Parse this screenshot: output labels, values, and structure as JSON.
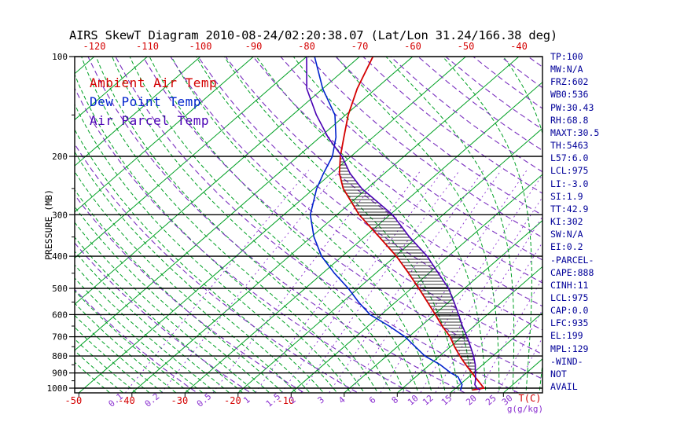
{
  "colors": {
    "temperature_axis": "#d40000",
    "mixing_ratio_axis": "#8a2fd0",
    "pressure_axis": "#000000",
    "stats_text": "#000099",
    "isotherm_green": "#00a024",
    "adiabat_purple": "#7a2fbf",
    "hatch": "#000000"
  },
  "legend": [
    {
      "label": "Ambient Air Temp",
      "color": "#d40000"
    },
    {
      "label": "Dew Point Temp",
      "color": "#0022cc"
    },
    {
      "label": "Air Parcel Temp",
      "color": "#4a00b4"
    }
  ],
  "stats_panel": {
    "lines": [
      "TP:100",
      "MW:N/A",
      "FRZ:602",
      "WB0:536",
      "PW:30.43",
      "RH:68.8",
      "MAXT:30.5",
      "TH:5463",
      "L57:6.0",
      "LCL:975",
      "LI:-3.0",
      "SI:1.9",
      "TT:42.9",
      "KI:302",
      "SW:N/A",
      "EI:0.2",
      "-PARCEL-",
      "CAPE:888",
      "CINH:11",
      "LCL:975",
      "CAP:0.0",
      "LFC:935",
      "EL:199",
      "MPL:129",
      "-WIND-",
      "NOT",
      "AVAIL"
    ]
  },
  "chart_data": {
    "type": "line",
    "diagram": "skew-t-log-p",
    "title": "AIRS SkewT Diagram 2010-08-24/02:20:38.07 (Lat/Lon 31.24/166.38 deg)",
    "pressure_axis": {
      "label": "PRESSURE (MB)",
      "scale": "log",
      "range_mb": [
        100,
        1050
      ],
      "ticks": [
        100,
        200,
        300,
        400,
        500,
        600,
        700,
        800,
        900,
        1000
      ],
      "minor_ticks": [
        150,
        250,
        350,
        450,
        550,
        650,
        750,
        850,
        950
      ]
    },
    "temp_axis": {
      "unit_label": "T(C)",
      "top_ticks": [
        -120,
        -110,
        -100,
        -90,
        -80,
        -70,
        -60,
        -50,
        -40
      ],
      "bottom_ticks": [
        -50,
        -40,
        -30,
        -20,
        -10
      ]
    },
    "mixing_ratio_axis": {
      "unit_label": "g(g/kg)",
      "ticks": [
        0.1,
        0.2,
        0.5,
        1,
        1.5,
        2,
        3,
        4,
        6,
        8,
        10,
        12,
        15,
        20,
        25,
        30
      ]
    },
    "background": {
      "isotherms": {
        "color": "#00a024",
        "range_c": [
          -120,
          40
        ],
        "step_c": 10,
        "style": "solid"
      },
      "moist_adiabats": {
        "color": "#00a024",
        "surface_temp_range_c": [
          -42.5,
          40
        ],
        "step_c": 2.5,
        "style": "dashed"
      },
      "dry_adiabats": {
        "color": "#7a2fbf",
        "theta_range_c": [
          -30,
          250
        ],
        "step_c": 10,
        "style": "dashed"
      },
      "mixing_ratio_lines": {
        "color": "#8a2fd0",
        "values_g_kg": [
          0.1,
          0.2,
          0.5,
          1,
          1.5,
          2,
          3,
          4,
          6,
          8,
          10,
          12,
          15,
          20,
          25,
          30
        ],
        "style": "dashed"
      }
    },
    "series": [
      {
        "name": "Ambient Air Temp",
        "color": "#d40000",
        "pressure_mb": [
          1013,
          1000,
          975,
          950,
          925,
          900,
          850,
          800,
          750,
          700,
          650,
          600,
          550,
          500,
          450,
          400,
          350,
          300,
          250,
          225,
          200,
          175,
          150,
          125,
          100
        ],
        "temperature_c": [
          23.5,
          25.3,
          24.0,
          22.6,
          21.2,
          19.8,
          16.8,
          13.8,
          10.8,
          7.8,
          4.0,
          0.2,
          -4.0,
          -8.6,
          -13.8,
          -19.8,
          -27.2,
          -35.8,
          -44.5,
          -48.5,
          -52.0,
          -55.5,
          -59.5,
          -63.5,
          -67.5
        ]
      },
      {
        "name": "Dew Point Temp",
        "color": "#0022cc",
        "pressure_mb": [
          1013,
          1000,
          975,
          950,
          925,
          900,
          850,
          800,
          750,
          700,
          650,
          600,
          550,
          500,
          450,
          400,
          350,
          300,
          250,
          225,
          200,
          175,
          150,
          125,
          100
        ],
        "temperature_c": [
          21.3,
          21.0,
          20.4,
          19.2,
          18.0,
          15.8,
          12.0,
          7.2,
          3.4,
          -0.7,
          -6.0,
          -12.1,
          -17.0,
          -21.9,
          -27.8,
          -33.9,
          -39.5,
          -45.0,
          -49.5,
          -51.5,
          -53.5,
          -57.0,
          -62.0,
          -70.0,
          -78.5
        ]
      },
      {
        "name": "Air Parcel Temp",
        "color": "#4a00b4",
        "pressure_mb": [
          1013,
          1000,
          975,
          950,
          925,
          900,
          850,
          800,
          750,
          700,
          650,
          600,
          550,
          500,
          450,
          400,
          350,
          300,
          250,
          225,
          200,
          175,
          150,
          125,
          100
        ],
        "temperature_c": [
          25.0,
          24.0,
          22.8,
          22.1,
          21.3,
          20.4,
          18.6,
          16.4,
          13.8,
          11.0,
          7.8,
          4.6,
          1.0,
          -3.0,
          -8.2,
          -14.0,
          -21.5,
          -29.5,
          -41.0,
          -46.5,
          -51.7,
          -58.5,
          -65.5,
          -73.0,
          -80.0
        ]
      }
    ],
    "cape_hatch": {
      "between": [
        "Ambient Air Temp",
        "Air Parcel Temp"
      ],
      "from_pressure_mb": 935,
      "to_pressure_mb": 199
    }
  }
}
